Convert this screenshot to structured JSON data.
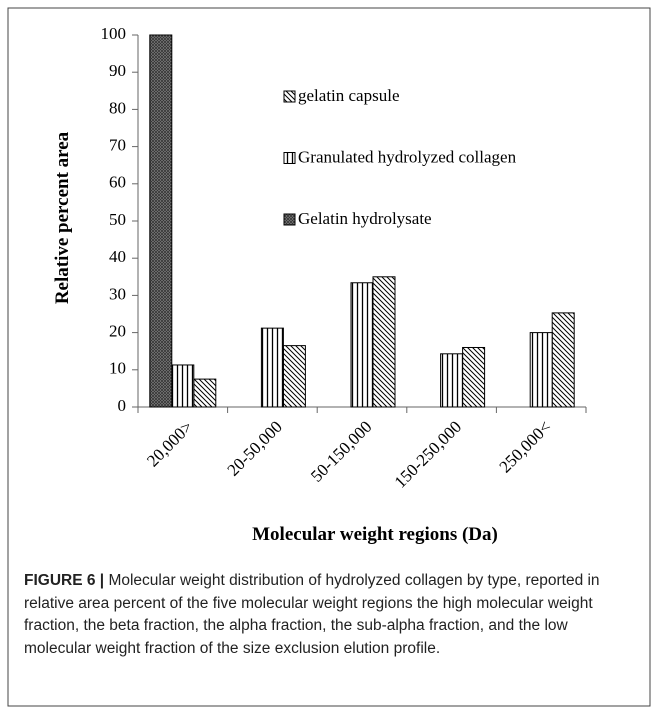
{
  "chart_data": {
    "type": "bar",
    "x_label": "Molecular weight regions (Da)",
    "y_label": "Relative percent area",
    "categories": [
      "20,000>",
      "20-50,000",
      "50-150,000",
      "150-250,000",
      "250,000<"
    ],
    "series": [
      {
        "name": "gelatin capsule",
        "color": "#000000",
        "pattern": "diagonal",
        "values": [
          7.5,
          16.5,
          35,
          16,
          25.3
        ]
      },
      {
        "name": "Granulated hydrolyzed collagen",
        "color": "#000000",
        "pattern": "vertical",
        "values": [
          11.3,
          21.2,
          33.4,
          14.3,
          20
        ]
      },
      {
        "name": "Gelatin hydrolysate",
        "color": "#000000",
        "pattern": "dense",
        "values": [
          100,
          null,
          null,
          null,
          null
        ]
      }
    ],
    "ylim": [
      0,
      100
    ],
    "yticks": [
      0,
      10,
      20,
      30,
      40,
      50,
      60,
      70,
      80,
      90,
      100
    ],
    "caption_label": "FIGURE 6 |",
    "caption": "Molecular weight distribution of hydrolyzed collagen by type, reported in relative area percent of the five molecular weight regions the high molecular weight fraction, the beta fraction, the alpha fraction, the sub-alpha fraction, and the low molecular weight fraction of the size exclusion elution profile."
  }
}
